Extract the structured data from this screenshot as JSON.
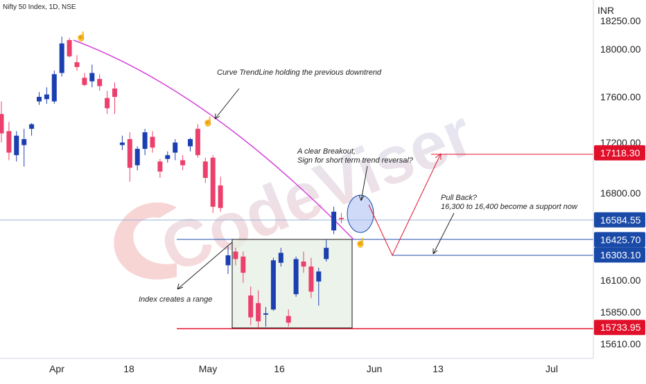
{
  "chart_data": {
    "type": "candlestick",
    "title": "Nifty 50 Index, 1D, NSE",
    "currency_label": "INR",
    "watermark": "CodeViser",
    "x_tick_labels": [
      "Apr",
      "18",
      "May",
      "16",
      "Jun",
      "13",
      "Jul"
    ],
    "y_tick_labels": [
      "18250.00",
      "18000.00",
      "17600.00",
      "17200.00",
      "16800.00",
      "16100.00",
      "15850.00",
      "15610.00"
    ],
    "price_tags": [
      {
        "label": "17118.30",
        "value": 17118.3,
        "color": "#e0102a"
      },
      {
        "label": "16584.55",
        "value": 16584.55,
        "color": "#1a4aa8"
      },
      {
        "label": "16425.70",
        "value": 16425.7,
        "color": "#1a4aa8"
      },
      {
        "label": "16303.10",
        "value": 16303.1,
        "color": "#1a4aa8"
      },
      {
        "label": "15733.95",
        "value": 15733.95,
        "color": "#e0102a"
      }
    ],
    "candles": [
      {
        "o": 17450,
        "h": 17560,
        "l": 17200,
        "c": 17280
      },
      {
        "o": 17300,
        "h": 17380,
        "l": 17060,
        "c": 17120
      },
      {
        "o": 17100,
        "h": 17300,
        "l": 17050,
        "c": 17260
      },
      {
        "o": 17180,
        "h": 17320,
        "l": 17010,
        "c": 17230
      },
      {
        "o": 17320,
        "h": 17370,
        "l": 17260,
        "c": 17360
      },
      {
        "o": 17560,
        "h": 17640,
        "l": 17530,
        "c": 17600
      },
      {
        "o": 17580,
        "h": 17680,
        "l": 17540,
        "c": 17620
      },
      {
        "o": 17560,
        "h": 17820,
        "l": 17540,
        "c": 17790
      },
      {
        "o": 17800,
        "h": 18110,
        "l": 17770,
        "c": 18050
      },
      {
        "o": 18080,
        "h": 18100,
        "l": 17930,
        "c": 17940
      },
      {
        "o": 17890,
        "h": 17950,
        "l": 17820,
        "c": 17850
      },
      {
        "o": 17760,
        "h": 17800,
        "l": 17690,
        "c": 17700
      },
      {
        "o": 17730,
        "h": 17870,
        "l": 17680,
        "c": 17800
      },
      {
        "o": 17750,
        "h": 17790,
        "l": 17650,
        "c": 17690
      },
      {
        "o": 17590,
        "h": 17650,
        "l": 17450,
        "c": 17500
      },
      {
        "o": 17670,
        "h": 17720,
        "l": 17450,
        "c": 17600
      },
      {
        "o": 17180,
        "h": 17260,
        "l": 17140,
        "c": 17200
      },
      {
        "o": 17230,
        "h": 17290,
        "l": 16890,
        "c": 17000
      },
      {
        "o": 17020,
        "h": 17170,
        "l": 16980,
        "c": 17150
      },
      {
        "o": 17150,
        "h": 17320,
        "l": 17100,
        "c": 17290
      },
      {
        "o": 17250,
        "h": 17300,
        "l": 17120,
        "c": 17160
      },
      {
        "o": 17050,
        "h": 17070,
        "l": 16920,
        "c": 16970
      },
      {
        "o": 17070,
        "h": 17130,
        "l": 17040,
        "c": 17100
      },
      {
        "o": 17120,
        "h": 17230,
        "l": 17060,
        "c": 17200
      },
      {
        "o": 17060,
        "h": 17100,
        "l": 16980,
        "c": 17020
      },
      {
        "o": 17170,
        "h": 17240,
        "l": 17130,
        "c": 17230
      },
      {
        "o": 17320,
        "h": 17360,
        "l": 17080,
        "c": 17100
      },
      {
        "o": 17050,
        "h": 17080,
        "l": 16880,
        "c": 16920
      },
      {
        "o": 17080,
        "h": 17100,
        "l": 16640,
        "c": 16690
      },
      {
        "o": 16860,
        "h": 16930,
        "l": 16650,
        "c": 16680
      },
      {
        "o": 16220,
        "h": 16370,
        "l": 16150,
        "c": 16300
      },
      {
        "o": 16330,
        "h": 16360,
        "l": 16220,
        "c": 16270
      },
      {
        "o": 16290,
        "h": 16330,
        "l": 16080,
        "c": 16160
      },
      {
        "o": 15980,
        "h": 16050,
        "l": 15750,
        "c": 15810
      },
      {
        "o": 15920,
        "h": 16020,
        "l": 15730,
        "c": 15780
      },
      {
        "o": 15830,
        "h": 15890,
        "l": 15740,
        "c": 15840
      },
      {
        "o": 15870,
        "h": 16280,
        "l": 15860,
        "c": 16260
      },
      {
        "o": 16240,
        "h": 16360,
        "l": 16210,
        "c": 16320
      },
      {
        "o": 15820,
        "h": 15870,
        "l": 15740,
        "c": 15770
      },
      {
        "o": 15990,
        "h": 16290,
        "l": 15970,
        "c": 16270
      },
      {
        "o": 16250,
        "h": 16330,
        "l": 16160,
        "c": 16210
      },
      {
        "o": 16210,
        "h": 16280,
        "l": 15960,
        "c": 16010
      },
      {
        "o": 16090,
        "h": 16200,
        "l": 15900,
        "c": 16170
      },
      {
        "o": 16270,
        "h": 16430,
        "l": 16250,
        "c": 16360
      },
      {
        "o": 16500,
        "h": 16690,
        "l": 16470,
        "c": 16650
      },
      {
        "o": 16600,
        "h": 16640,
        "l": 16560,
        "c": 16590
      }
    ],
    "annotations": [
      {
        "text": "Curve TrendLine holding the previous downtrend"
      },
      {
        "text": "A clear Breakout,"
      },
      {
        "text": "Sign for short term trend reversal?"
      },
      {
        "text": "Pull Back?"
      },
      {
        "text": "16,300 to 16,400 become a support now"
      },
      {
        "text": "Index creates a range"
      }
    ]
  }
}
